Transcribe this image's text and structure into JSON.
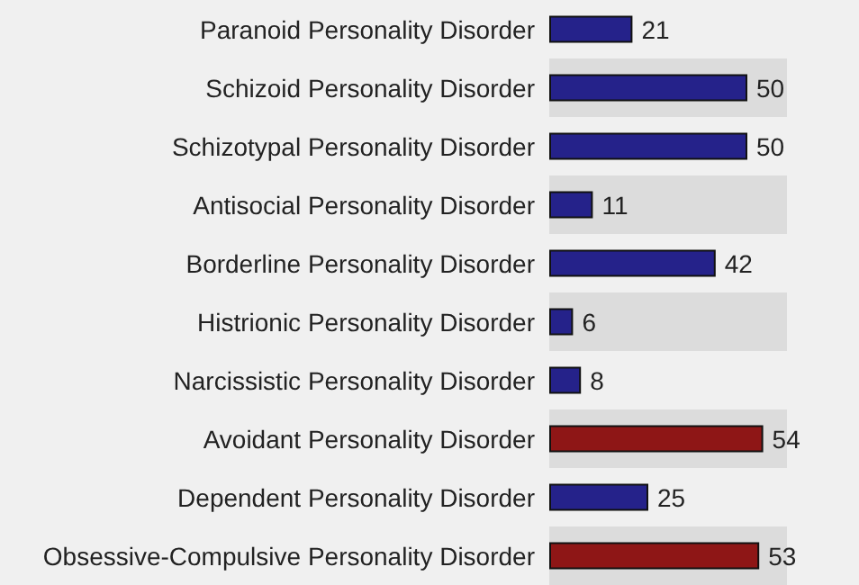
{
  "chart_data": {
    "type": "bar",
    "orientation": "horizontal",
    "categories": [
      "Paranoid Personality Disorder",
      "Schizoid Personality Disorder",
      "Schizotypal Personality Disorder",
      "Antisocial Personality Disorder",
      "Borderline Personality Disorder",
      "Histrionic Personality Disorder",
      "Narcissistic Personality Disorder",
      "Avoidant Personality Disorder",
      "Dependent Personality Disorder",
      "Obsessive-Compulsive Personality Disorder"
    ],
    "values": [
      21,
      50,
      50,
      11,
      42,
      6,
      8,
      54,
      25,
      53
    ],
    "colors": [
      "#25228a",
      "#25228a",
      "#25228a",
      "#25228a",
      "#25228a",
      "#25228a",
      "#25228a",
      "#8e1616",
      "#25228a",
      "#8e1616"
    ],
    "data_labels": true
  }
}
